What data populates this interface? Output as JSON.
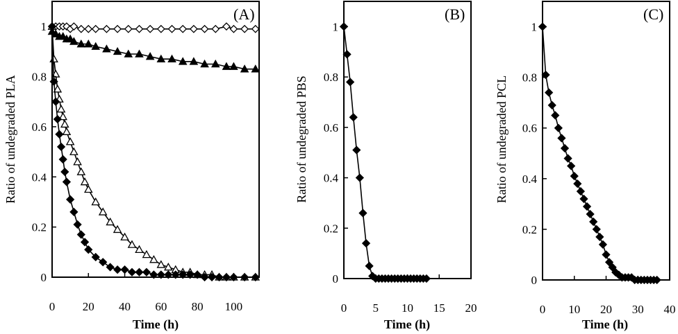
{
  "chart_data": [
    {
      "panel_label": "(A)",
      "type": "line",
      "xlabel": "Time (h)",
      "ylabel": "Ratio of undegraded PLA",
      "xlim": [
        0,
        114
      ],
      "ylim": [
        0,
        1.1
      ],
      "xticks": [
        0,
        20,
        40,
        60,
        80,
        100
      ],
      "yticks": [
        0,
        0.2,
        0.4,
        0.6,
        0.8,
        1
      ],
      "ytick_labels": [
        "0",
        "0.2",
        "0.4",
        "0.6",
        "0.8",
        "1"
      ],
      "grid": false,
      "series": [
        {
          "marker": "diamond-open",
          "x": [
            0,
            2,
            4,
            6,
            8,
            10,
            12,
            16,
            20,
            24,
            30,
            36,
            42,
            48,
            54,
            60,
            66,
            72,
            78,
            84,
            90,
            96,
            100,
            106,
            112
          ],
          "y": [
            1.0,
            1.0,
            1.0,
            1.0,
            1.0,
            0.99,
            1.0,
            0.99,
            0.99,
            0.99,
            0.99,
            0.99,
            0.99,
            0.99,
            0.99,
            0.99,
            0.99,
            0.99,
            0.99,
            0.99,
            0.99,
            1.0,
            0.99,
            0.99,
            0.99
          ]
        },
        {
          "marker": "triangle-filled",
          "x": [
            0,
            2,
            4,
            6,
            8,
            10,
            12,
            16,
            20,
            24,
            30,
            36,
            42,
            48,
            54,
            60,
            66,
            72,
            78,
            84,
            90,
            96,
            100,
            106,
            112
          ],
          "y": [
            0.98,
            0.97,
            0.96,
            0.96,
            0.95,
            0.95,
            0.94,
            0.93,
            0.93,
            0.92,
            0.91,
            0.9,
            0.89,
            0.89,
            0.88,
            0.87,
            0.87,
            0.86,
            0.86,
            0.85,
            0.85,
            0.84,
            0.84,
            0.83,
            0.83
          ]
        },
        {
          "marker": "triangle-open",
          "x": [
            0,
            1,
            2,
            3,
            4,
            5,
            6,
            7,
            8,
            10,
            12,
            14,
            16,
            18,
            20,
            24,
            28,
            32,
            36,
            40,
            44,
            48,
            52,
            56,
            60,
            64,
            68,
            72,
            76,
            80,
            84,
            88,
            92,
            96,
            100,
            106,
            112
          ],
          "y": [
            1.0,
            0.87,
            0.81,
            0.75,
            0.71,
            0.67,
            0.64,
            0.61,
            0.58,
            0.54,
            0.5,
            0.46,
            0.42,
            0.38,
            0.35,
            0.3,
            0.26,
            0.22,
            0.19,
            0.16,
            0.13,
            0.11,
            0.09,
            0.07,
            0.05,
            0.04,
            0.03,
            0.02,
            0.02,
            0.01,
            0.01,
            0.01,
            0.0,
            0.0,
            0.0,
            0.0,
            0.0
          ]
        },
        {
          "marker": "diamond-filled",
          "x": [
            0,
            1,
            2,
            3,
            4,
            5,
            6,
            7,
            8,
            10,
            12,
            14,
            16,
            18,
            20,
            24,
            28,
            32,
            36,
            40,
            44,
            48,
            52,
            56,
            60,
            64,
            68,
            72,
            76,
            80,
            84,
            88,
            92,
            96,
            100,
            106,
            112
          ],
          "y": [
            1.0,
            0.78,
            0.7,
            0.63,
            0.57,
            0.52,
            0.47,
            0.42,
            0.38,
            0.31,
            0.26,
            0.21,
            0.17,
            0.14,
            0.11,
            0.08,
            0.06,
            0.04,
            0.03,
            0.03,
            0.02,
            0.02,
            0.02,
            0.01,
            0.01,
            0.01,
            0.01,
            0.01,
            0.01,
            0.01,
            0.0,
            0.0,
            0.0,
            0.0,
            0.0,
            0.0,
            0.0
          ]
        }
      ]
    },
    {
      "panel_label": "(B)",
      "type": "line",
      "xlabel": "Time (h)",
      "ylabel": "Ratio of undegraded PBS",
      "xlim": [
        0,
        20
      ],
      "ylim": [
        0,
        1.1
      ],
      "xticks": [
        0,
        5,
        10,
        15,
        20
      ],
      "yticks": [
        0,
        0.2,
        0.4,
        0.6,
        0.8,
        1
      ],
      "ytick_labels": [
        "0",
        "0.2",
        "0.4",
        "0.6",
        "0.8",
        "1"
      ],
      "grid": false,
      "series": [
        {
          "marker": "diamond-filled",
          "x": [
            0,
            0.5,
            1,
            1.5,
            2,
            2.5,
            3,
            3.5,
            4,
            4.5,
            5,
            5.5,
            6,
            6.5,
            7,
            7.5,
            8,
            8.5,
            9,
            9.5,
            10,
            10.5,
            11,
            11.5,
            12,
            12.5,
            13
          ],
          "y": [
            1.0,
            0.89,
            0.78,
            0.64,
            0.51,
            0.4,
            0.26,
            0.14,
            0.05,
            0.01,
            0.0,
            0.0,
            0.0,
            0.0,
            0.0,
            0.0,
            0.0,
            0.0,
            0.0,
            0.0,
            0.0,
            0.0,
            0.0,
            0.0,
            0.0,
            0.0,
            0.0
          ]
        }
      ]
    },
    {
      "panel_label": "(C)",
      "type": "line",
      "xlabel": "Time (h)",
      "ylabel": "Ratio of undegraded PCL",
      "xlim": [
        0,
        40
      ],
      "ylim": [
        0,
        1.1
      ],
      "xticks": [
        0,
        10,
        20,
        30,
        40
      ],
      "yticks": [
        0,
        0.2,
        0.4,
        0.6,
        0.8,
        1
      ],
      "ytick_labels": [
        "0",
        "0.2",
        "0.4",
        "0.6",
        "0.8",
        "1"
      ],
      "grid": false,
      "series": [
        {
          "marker": "diamond-filled",
          "x": [
            0,
            1,
            2,
            3,
            4,
            5,
            6,
            7,
            8,
            9,
            10,
            11,
            12,
            13,
            14,
            15,
            16,
            17,
            18,
            19,
            20,
            21,
            22,
            23,
            24,
            25,
            26,
            27,
            28,
            29,
            30,
            31,
            32,
            33,
            34,
            35,
            36
          ],
          "y": [
            1.0,
            0.81,
            0.74,
            0.69,
            0.65,
            0.6,
            0.56,
            0.52,
            0.48,
            0.45,
            0.41,
            0.38,
            0.35,
            0.32,
            0.29,
            0.26,
            0.23,
            0.2,
            0.17,
            0.14,
            0.1,
            0.07,
            0.05,
            0.03,
            0.02,
            0.01,
            0.01,
            0.01,
            0.01,
            0.0,
            0.0,
            0.0,
            0.0,
            0.0,
            0.0,
            0.0,
            0.0
          ]
        }
      ]
    }
  ]
}
